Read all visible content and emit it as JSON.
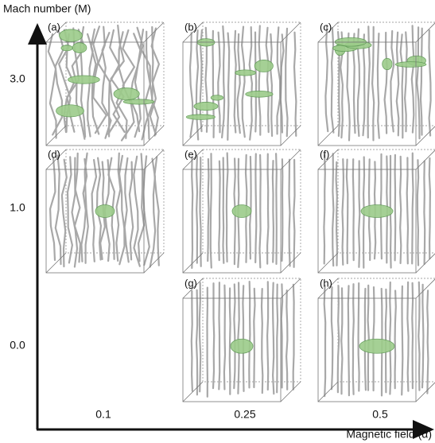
{
  "y_axis": {
    "label": "Mach number (M)",
    "ticks": [
      "3.0",
      "1.0",
      "0.0"
    ]
  },
  "x_axis": {
    "label": "Magnetic field (α)",
    "ticks": [
      "0.1",
      "0.25",
      "0.5"
    ]
  },
  "panels": [
    {
      "label": "(a)"
    },
    {
      "label": "(b)"
    },
    {
      "label": "(c)"
    },
    {
      "label": "(d)"
    },
    {
      "label": "(e)"
    },
    {
      "label": "(f)"
    },
    {
      "label": "(g)"
    },
    {
      "label": "(h)"
    }
  ]
}
